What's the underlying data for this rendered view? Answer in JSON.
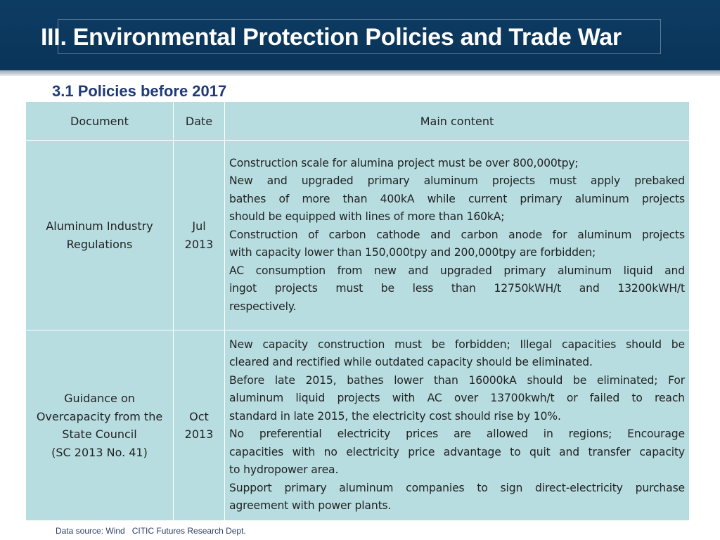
{
  "slide": {
    "title": "III. Environmental Protection Policies and Trade War",
    "subtitle": "3.1 Policies before 2017",
    "footer": "Data source: Wind   CITIC Futures Research Dept."
  },
  "table": {
    "headers": [
      "Document",
      "Date",
      "Main content"
    ],
    "rows": [
      {
        "document": [
          "Aluminum Industry",
          "Regulations"
        ],
        "date": [
          "Jul",
          "2013"
        ],
        "content": [
          "Construction scale for alumina project must be over 800,000tpy;",
          "New and upgraded primary aluminum projects must apply prebaked",
          "bathes of more than 400kA while current primary aluminum projects",
          "should be equipped with lines of more than 160kA;",
          "Construction of carbon cathode and carbon anode for aluminum projects",
          "with capacity lower than 150,000tpy and 200,000tpy are forbidden;",
          "AC consumption from new and upgraded primary aluminum liquid and",
          "ingot projects must be less than 12750kWH/t and 13200kWH/t",
          "respectively."
        ]
      },
      {
        "document": [
          "Guidance on",
          "Overcapacity from the",
          "State Council",
          "(SC 2013 No. 41)"
        ],
        "date": [
          "Oct",
          "2013"
        ],
        "content": [
          "New capacity construction must be forbidden; Illegal capacities should be",
          "cleared and rectified while outdated capacity should be eliminated.",
          "Before late 2015, bathes lower than 16000kA should be eliminated; For",
          "aluminum liquid projects with AC over 13700kwh/t or failed to reach",
          "standard in late 2015, the electricity cost should rise by 10%.",
          "No preferential electricity prices are allowed in regions; Encourage",
          "capacities with no electricity price advantage to quit and transfer capacity",
          "to hydropower area.",
          "Support primary aluminum companies to sign direct-electricity purchase",
          "agreement with power plants."
        ]
      }
    ]
  },
  "colors": {
    "header_bg": "#0d3c63",
    "title_text": "#ffffff",
    "subtitle_text": "#1f3a78",
    "table_cell_bg": "#b7dde1"
  }
}
